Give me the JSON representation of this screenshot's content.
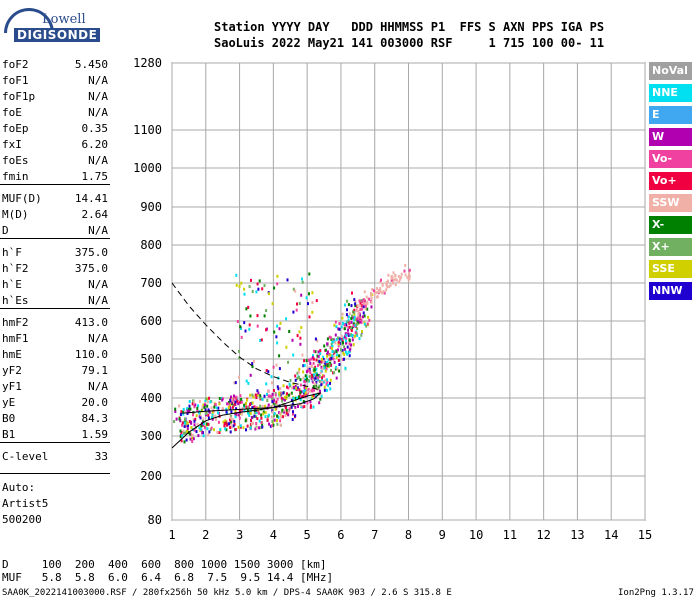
{
  "logo": {
    "line1": "Lowell",
    "line2": "DIGISONDE"
  },
  "header": {
    "row1": "Station YYYY DAY   DDD HHMMSS P1  FFS S AXN PPS IGA PS",
    "row2": "SaoLuis 2022 May21 141 003000 RSF     1 715 100 00- 11"
  },
  "params": [
    {
      "k": "foF2",
      "v": "5.450"
    },
    {
      "k": "foF1",
      "v": "N/A"
    },
    {
      "k": "foF1p",
      "v": "N/A"
    },
    {
      "k": "foE",
      "v": "N/A"
    },
    {
      "k": "foEp",
      "v": "0.35"
    },
    {
      "k": "fxI",
      "v": "6.20"
    },
    {
      "k": "foEs",
      "v": "N/A"
    },
    {
      "k": "fmin",
      "v": "1.75"
    },
    {
      "k": "MUF(D)",
      "v": "14.41"
    },
    {
      "k": "M(D)",
      "v": "2.64"
    },
    {
      "k": "D",
      "v": "N/A"
    },
    {
      "k": "h`F",
      "v": "375.0"
    },
    {
      "k": "h`F2",
      "v": "375.0"
    },
    {
      "k": "h`E",
      "v": "N/A"
    },
    {
      "k": "h`Es",
      "v": "N/A"
    },
    {
      "k": "hmF2",
      "v": "413.0"
    },
    {
      "k": "hmF1",
      "v": "N/A"
    },
    {
      "k": "hmE",
      "v": "110.0"
    },
    {
      "k": "yF2",
      "v": "79.1"
    },
    {
      "k": "yF1",
      "v": "N/A"
    },
    {
      "k": "yE",
      "v": "20.0"
    },
    {
      "k": "B0",
      "v": "84.3"
    },
    {
      "k": "B1",
      "v": "1.59"
    },
    {
      "k": "C-level",
      "v": "33"
    }
  ],
  "auto": {
    "l1": "Auto:",
    "l2": "Artist5",
    "l3": "500200"
  },
  "legend": [
    {
      "label": "NoVal",
      "color": "#a0a0a0"
    },
    {
      "label": "NNE",
      "color": "#00e0f0"
    },
    {
      "label": "E",
      "color": "#40a8f0"
    },
    {
      "label": "W",
      "color": "#b000b0"
    },
    {
      "label": "Vo-",
      "color": "#f040a0"
    },
    {
      "label": "Vo+",
      "color": "#f00040"
    },
    {
      "label": "SSW",
      "color": "#f0b0a8"
    },
    {
      "label": "X-",
      "color": "#008000"
    },
    {
      "label": "X+",
      "color": "#70b060"
    },
    {
      "label": "SSE",
      "color": "#d0d000"
    },
    {
      "label": "NNW",
      "color": "#2000d0"
    }
  ],
  "bottom": {
    "row1": "D     100  200  400  600  800 1000 1500 3000 [km]",
    "row2": "MUF   5.8  5.8  6.0  6.4  6.8  7.5  9.5 14.4 [MHz]",
    "footer_left": "SAA0K_2022141003000.RSF / 280fx256h 50 kHz 5.0 km / DPS-4 SAA0K 903 / 2.6 S 315.8 E",
    "footer_right": "Ion2Png 1.3.17"
  },
  "chart_data": {
    "type": "scatter",
    "x_ticks": [
      "1",
      "2",
      "3",
      "4",
      "5",
      "6",
      "7",
      "8",
      "9",
      "10",
      "11",
      "12",
      "13",
      "14",
      "15"
    ],
    "y_ticks": [
      "80",
      "200",
      "300",
      "400",
      "500",
      "600",
      "700",
      "800",
      "900",
      "1000",
      "1100",
      "1280"
    ],
    "xlim": [
      1,
      15
    ],
    "ylim": [
      80,
      1280
    ],
    "grid": true,
    "trace_colors": [
      "#b000b0",
      "#f040a0",
      "#f00040",
      "#2000d0",
      "#f0b0a8",
      "#008000",
      "#d0d000",
      "#70b060",
      "#00e0f0"
    ],
    "trace_main": [
      [
        1.3,
        330
      ],
      [
        1.6,
        345
      ],
      [
        2.0,
        355
      ],
      [
        2.5,
        360
      ],
      [
        3.0,
        362
      ],
      [
        3.5,
        368
      ],
      [
        4.0,
        375
      ],
      [
        4.5,
        395
      ],
      [
        5.0,
        430
      ],
      [
        5.3,
        460
      ],
      [
        5.6,
        495
      ],
      [
        6.0,
        545
      ],
      [
        6.3,
        600
      ],
      [
        6.6,
        640
      ]
    ],
    "trace_x": [
      [
        6.4,
        620
      ],
      [
        6.8,
        665
      ],
      [
        7.2,
        695
      ],
      [
        7.6,
        715
      ],
      [
        8.0,
        735
      ]
    ],
    "profile_solid": [
      [
        1.0,
        270
      ],
      [
        1.5,
        310
      ],
      [
        2.0,
        340
      ],
      [
        2.5,
        355
      ],
      [
        3.0,
        362
      ],
      [
        3.5,
        368
      ],
      [
        4.0,
        375
      ],
      [
        4.5,
        390
      ],
      [
        5.0,
        405
      ],
      [
        5.4,
        413
      ],
      [
        5.2,
        398
      ],
      [
        4.8,
        385
      ],
      [
        4.0,
        375
      ],
      [
        3.0,
        370
      ],
      [
        2.0,
        365
      ],
      [
        1.3,
        360
      ]
    ],
    "profile_dashed": [
      [
        1.0,
        700
      ],
      [
        1.5,
        640
      ],
      [
        2.0,
        590
      ],
      [
        2.5,
        545
      ],
      [
        3.0,
        505
      ],
      [
        3.5,
        475
      ],
      [
        4.0,
        455
      ],
      [
        4.5,
        440
      ],
      [
        5.0,
        430
      ],
      [
        5.4,
        420
      ]
    ]
  }
}
